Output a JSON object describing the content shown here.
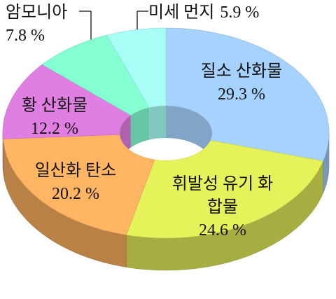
{
  "chart_data": {
    "type": "donut3d",
    "categories": [
      "질소 산화물",
      "휘발성 유기 화합물",
      "일산화 탄소",
      "황 산화물",
      "암모니아",
      "미세 먼지"
    ],
    "values": [
      29.3,
      24.6,
      20.2,
      12.2,
      7.8,
      5.9
    ],
    "value_labels": [
      "29.3 %",
      "24.6 %",
      "20.2 %",
      "12.2 %",
      "7.8 %",
      "5.9 %"
    ],
    "colors": [
      "#a6d2ff",
      "#e6f25a",
      "#ffb562",
      "#e07ee2",
      "#84ffd2",
      "#a8fff8"
    ]
  }
}
